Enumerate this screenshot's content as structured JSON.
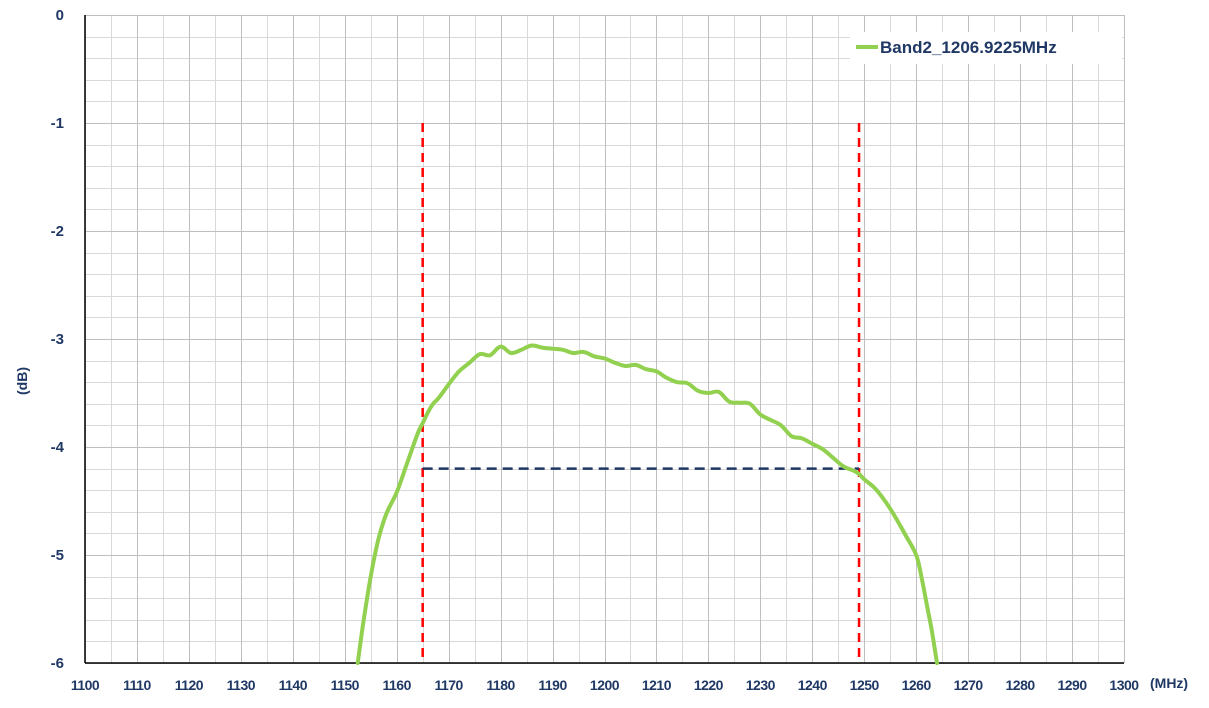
{
  "chart_data": {
    "type": "line",
    "xlabel": "(MHz)",
    "ylabel": "(dB)",
    "xlim": [
      1100,
      1300
    ],
    "ylim": [
      -6,
      0
    ],
    "xticks": [
      1100,
      1110,
      1120,
      1130,
      1140,
      1150,
      1160,
      1170,
      1180,
      1190,
      1200,
      1210,
      1220,
      1230,
      1240,
      1250,
      1260,
      1270,
      1280,
      1290,
      1300
    ],
    "yticks": [
      0,
      -1,
      -2,
      -3,
      -4,
      -5,
      -6
    ],
    "grid": true,
    "legend_position": "top-right",
    "series": [
      {
        "name": "Band2_1206.9225MHz",
        "color": "#92D050",
        "x": [
          1152.5,
          1153.5,
          1155,
          1156.5,
          1158,
          1160,
          1162,
          1164,
          1165,
          1166,
          1167,
          1168,
          1170,
          1172,
          1174,
          1176,
          1178,
          1180,
          1182,
          1184,
          1186,
          1188,
          1190,
          1192,
          1194,
          1196,
          1198,
          1200,
          1202,
          1204,
          1206,
          1208,
          1210,
          1212,
          1214,
          1216,
          1218,
          1220,
          1222,
          1224,
          1226,
          1228,
          1230,
          1232,
          1234,
          1236,
          1238,
          1240,
          1242,
          1244,
          1246,
          1248,
          1249,
          1250,
          1252,
          1254,
          1256,
          1258,
          1260,
          1261,
          1262,
          1263,
          1264
        ],
        "values": [
          -6.0,
          -5.65,
          -5.2,
          -4.85,
          -4.62,
          -4.42,
          -4.15,
          -3.88,
          -3.78,
          -3.68,
          -3.6,
          -3.55,
          -3.42,
          -3.3,
          -3.22,
          -3.14,
          -3.15,
          -3.07,
          -3.13,
          -3.1,
          -3.06,
          -3.08,
          -3.09,
          -3.1,
          -3.13,
          -3.12,
          -3.16,
          -3.18,
          -3.22,
          -3.25,
          -3.24,
          -3.28,
          -3.3,
          -3.36,
          -3.4,
          -3.41,
          -3.48,
          -3.5,
          -3.49,
          -3.58,
          -3.59,
          -3.6,
          -3.7,
          -3.75,
          -3.8,
          -3.9,
          -3.92,
          -3.97,
          -4.02,
          -4.1,
          -4.18,
          -4.22,
          -4.25,
          -4.3,
          -4.38,
          -4.5,
          -4.65,
          -4.82,
          -5.0,
          -5.2,
          -5.45,
          -5.7,
          -6.0
        ]
      }
    ],
    "markers": {
      "vertical_lines": [
        {
          "x": 1165,
          "y_from": -6,
          "y_to": -1,
          "color": "#FF0000"
        },
        {
          "x": 1249,
          "y_from": -6,
          "y_to": -1,
          "color": "#FF0000"
        }
      ],
      "horizontal_line": {
        "y": -4.2,
        "x_from": 1165,
        "x_to": 1249,
        "color": "#1F3864"
      }
    }
  }
}
